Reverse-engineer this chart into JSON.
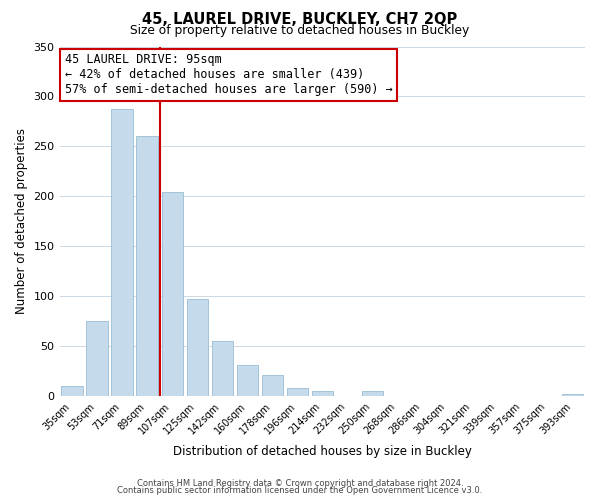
{
  "title": "45, LAUREL DRIVE, BUCKLEY, CH7 2QP",
  "subtitle": "Size of property relative to detached houses in Buckley",
  "xlabel": "Distribution of detached houses by size in Buckley",
  "ylabel": "Number of detached properties",
  "bar_labels": [
    "35sqm",
    "53sqm",
    "71sqm",
    "89sqm",
    "107sqm",
    "125sqm",
    "142sqm",
    "160sqm",
    "178sqm",
    "196sqm",
    "214sqm",
    "232sqm",
    "250sqm",
    "268sqm",
    "286sqm",
    "304sqm",
    "321sqm",
    "339sqm",
    "357sqm",
    "375sqm",
    "393sqm"
  ],
  "bar_values": [
    10,
    75,
    287,
    260,
    204,
    97,
    55,
    31,
    21,
    8,
    5,
    0,
    5,
    0,
    0,
    0,
    0,
    0,
    0,
    0,
    2
  ],
  "bar_color": "#c5daea",
  "bar_edge_color": "#9bbdd4",
  "ylim": [
    0,
    350
  ],
  "yticks": [
    0,
    50,
    100,
    150,
    200,
    250,
    300,
    350
  ],
  "property_line_color": "#cc0000",
  "annotation_title": "45 LAUREL DRIVE: 95sqm",
  "annotation_line1": "← 42% of detached houses are smaller (439)",
  "annotation_line2": "57% of semi-detached houses are larger (590) →",
  "annotation_box_color": "#ffffff",
  "annotation_box_edge": "#cc0000",
  "footer1": "Contains HM Land Registry data © Crown copyright and database right 2024.",
  "footer2": "Contains public sector information licensed under the Open Government Licence v3.0.",
  "background_color": "#ffffff",
  "grid_color": "#ccdae6"
}
